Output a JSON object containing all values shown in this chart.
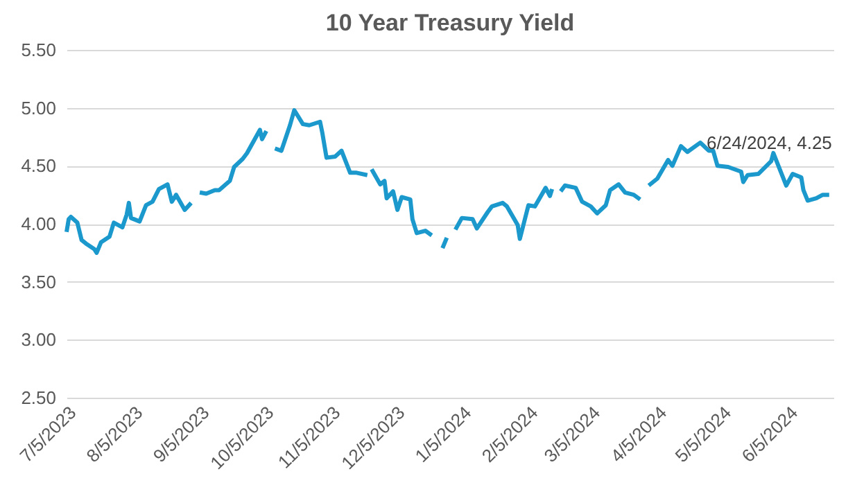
{
  "chart_data": {
    "type": "line",
    "title": "10 Year Treasury Yield",
    "x": [
      "2023-07-05",
      "2023-07-06",
      "2023-07-07",
      "2023-07-10",
      "2023-07-12",
      "2023-07-14",
      "2023-07-18",
      "2023-07-19",
      "2023-07-21",
      "2023-07-25",
      "2023-07-27",
      "2023-07-31",
      "2023-08-02",
      "2023-08-03",
      "2023-08-04",
      "2023-08-08",
      "2023-08-11",
      "2023-08-14",
      "2023-08-17",
      "2023-08-21",
      "2023-08-23",
      "2023-08-25",
      "2023-08-29",
      "2023-09-01",
      "2023-09-04",
      "2023-09-05",
      "2023-09-08",
      "2023-09-12",
      "2023-09-14",
      "2023-09-19",
      "2023-09-21",
      "2023-09-25",
      "2023-09-27",
      "2023-10-03",
      "2023-10-04",
      "2023-10-06",
      "2023-10-09",
      "2023-10-10",
      "2023-10-13",
      "2023-10-17",
      "2023-10-19",
      "2023-10-23",
      "2023-10-26",
      "2023-10-31",
      "2023-11-01",
      "2023-11-03",
      "2023-11-07",
      "2023-11-10",
      "2023-11-14",
      "2023-11-17",
      "2023-11-22",
      "2023-11-23",
      "2023-11-24",
      "2023-11-28",
      "2023-11-30",
      "2023-12-01",
      "2023-12-04",
      "2023-12-06",
      "2023-12-08",
      "2023-12-12",
      "2023-12-13",
      "2023-12-15",
      "2023-12-19",
      "2023-12-22",
      "2023-12-25",
      "2023-12-27",
      "2023-12-29",
      "2024-01-01",
      "2024-01-02",
      "2024-01-05",
      "2024-01-10",
      "2024-01-12",
      "2024-01-17",
      "2024-01-19",
      "2024-01-24",
      "2024-01-26",
      "2024-01-31",
      "2024-02-01",
      "2024-02-05",
      "2024-02-08",
      "2024-02-13",
      "2024-02-15",
      "2024-02-16",
      "2024-02-19",
      "2024-02-20",
      "2024-02-22",
      "2024-02-27",
      "2024-03-01",
      "2024-03-05",
      "2024-03-08",
      "2024-03-12",
      "2024-03-14",
      "2024-03-18",
      "2024-03-21",
      "2024-03-25",
      "2024-03-28",
      "2024-03-29",
      "2024-04-01",
      "2024-04-03",
      "2024-04-05",
      "2024-04-10",
      "2024-04-12",
      "2024-04-16",
      "2024-04-19",
      "2024-04-25",
      "2024-04-29",
      "2024-05-01",
      "2024-05-03",
      "2024-05-08",
      "2024-05-14",
      "2024-05-15",
      "2024-05-17",
      "2024-05-22",
      "2024-05-28",
      "2024-05-29",
      "2024-06-04",
      "2024-06-07",
      "2024-06-11",
      "2024-06-12",
      "2024-06-14",
      "2024-06-18",
      "2024-06-21",
      "2024-06-24"
    ],
    "series": [
      {
        "color": "#1b98cc",
        "line_style": "solid",
        "values": [
          3.93,
          4.04,
          4.06,
          4.01,
          3.86,
          3.83,
          3.78,
          3.75,
          3.84,
          3.89,
          4.01,
          3.97,
          4.08,
          4.18,
          4.05,
          4.02,
          4.16,
          4.19,
          4.3,
          4.34,
          4.19,
          4.25,
          4.12,
          4.18,
          null,
          4.27,
          4.26,
          4.29,
          4.29,
          4.37,
          4.49,
          4.56,
          4.61,
          4.81,
          4.73,
          4.8,
          null,
          4.65,
          4.63,
          4.85,
          4.98,
          4.86,
          4.85,
          4.88,
          4.79,
          4.57,
          4.58,
          4.63,
          4.44,
          4.44,
          4.42,
          null,
          4.47,
          4.34,
          4.37,
          4.22,
          4.28,
          4.12,
          4.23,
          4.21,
          4.04,
          3.92,
          3.94,
          3.9,
          null,
          3.79,
          3.88,
          null,
          3.95,
          4.05,
          4.04,
          3.96,
          4.1,
          4.15,
          4.18,
          4.15,
          3.99,
          3.87,
          4.16,
          4.15,
          4.31,
          4.24,
          4.3,
          null,
          4.28,
          4.33,
          4.31,
          4.19,
          4.15,
          4.09,
          4.16,
          4.29,
          4.34,
          4.27,
          4.25,
          4.21,
          null,
          4.33,
          4.36,
          4.39,
          4.55,
          4.5,
          4.67,
          4.62,
          4.7,
          4.63,
          4.63,
          4.5,
          4.49,
          4.45,
          4.36,
          4.42,
          4.43,
          4.54,
          4.61,
          4.33,
          4.43,
          4.4,
          4.29,
          4.2,
          4.22,
          4.25,
          4.25
        ]
      }
    ],
    "xlim": [
      "2023-07-05",
      "2024-06-26"
    ],
    "xticks": [
      {
        "value": "2023-07-05",
        "label": "7/5/2023"
      },
      {
        "value": "2023-08-05",
        "label": "8/5/2023"
      },
      {
        "value": "2023-09-05",
        "label": "9/5/2023"
      },
      {
        "value": "2023-10-05",
        "label": "10/5/2023"
      },
      {
        "value": "2023-11-05",
        "label": "11/5/2023"
      },
      {
        "value": "2023-12-05",
        "label": "12/5/2023"
      },
      {
        "value": "2024-01-05",
        "label": "1/5/2024"
      },
      {
        "value": "2024-02-05",
        "label": "2/5/2024"
      },
      {
        "value": "2024-03-05",
        "label": "3/5/2024"
      },
      {
        "value": "2024-04-05",
        "label": "4/5/2024"
      },
      {
        "value": "2024-05-05",
        "label": "5/5/2024"
      },
      {
        "value": "2024-06-05",
        "label": "6/5/2024"
      }
    ],
    "ylim": [
      2.5,
      5.5
    ],
    "yticks": [
      {
        "value": 2.5,
        "label": "2.50"
      },
      {
        "value": 3,
        "label": "3.00"
      },
      {
        "value": 3.5,
        "label": "3.50"
      },
      {
        "value": 4,
        "label": "4.00"
      },
      {
        "value": 4.5,
        "label": "4.50"
      },
      {
        "value": 5,
        "label": "5.00"
      },
      {
        "value": 5.5,
        "label": "5.50"
      }
    ],
    "grid": "y",
    "annotations": [
      {
        "text": "6/24/2024, 4.25",
        "x": "2024-06-24",
        "y": 4.25
      }
    ]
  }
}
